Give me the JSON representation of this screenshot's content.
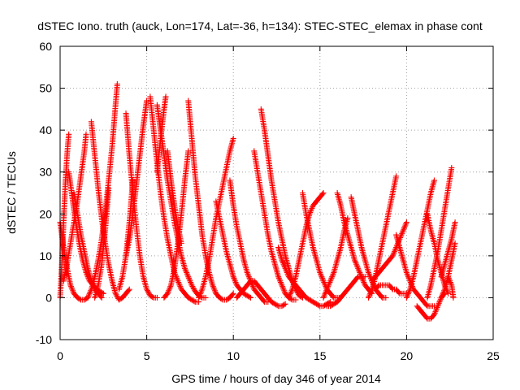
{
  "chart_data": {
    "type": "scatter",
    "title": "dSTEC Iono. truth (auck, Lon=174, Lat=-36, h=134): STEC-STEC_elemax in phase cont",
    "xlabel": "GPS time / hours of day 346 of year 2014",
    "ylabel": "dSTEC  / TECUs",
    "xlim": [
      0,
      25
    ],
    "ylim": [
      -10,
      60
    ],
    "xticks": [
      0,
      5,
      10,
      15,
      20,
      25
    ],
    "yticks": [
      -10,
      0,
      10,
      20,
      30,
      40,
      50,
      60
    ],
    "grid": true,
    "marker": "+",
    "color": "#ff0000",
    "series": [
      {
        "x": [
          0.0,
          0.2,
          0.4,
          0.6,
          0.8,
          1.0,
          1.2,
          1.4,
          1.6,
          1.8,
          2.0,
          2.2,
          2.4,
          2.6,
          2.8,
          3.0,
          3.2,
          3.3
        ],
        "y": [
          18,
          12,
          7,
          3,
          1,
          0,
          -0.5,
          -0.5,
          0,
          2,
          5,
          9,
          14,
          20,
          28,
          36,
          46,
          51
        ]
      },
      {
        "x": [
          0.0,
          0.1,
          0.2,
          0.3,
          0.4,
          0.5
        ],
        "y": [
          0,
          8,
          18,
          27,
          34,
          39
        ]
      },
      {
        "x": [
          0.5,
          0.7,
          0.9,
          1.1,
          1.3,
          1.5,
          1.7,
          1.9,
          2.1,
          2.3,
          2.5
        ],
        "y": [
          30,
          24,
          18,
          13,
          9,
          6,
          4,
          3,
          2,
          1.5,
          1
        ]
      },
      {
        "x": [
          0.2,
          0.4,
          0.6,
          0.8,
          1.0,
          1.2,
          1.4,
          1.5
        ],
        "y": [
          4,
          8,
          13,
          18,
          23,
          29,
          35,
          39
        ]
      },
      {
        "x": [
          0.8,
          1.0,
          1.2,
          1.4,
          1.6,
          1.8,
          2.0,
          2.2,
          2.4
        ],
        "y": [
          25,
          20,
          15,
          11,
          7,
          4,
          2,
          1,
          0
        ]
      },
      {
        "x": [
          1.8,
          2.0,
          2.2,
          2.4,
          2.6,
          2.8,
          3.0,
          3.2,
          3.4,
          3.6,
          3.8,
          4.0
        ],
        "y": [
          42,
          34,
          26,
          19,
          13,
          8,
          4,
          1,
          -0.5,
          0,
          1,
          2
        ]
      },
      {
        "x": [
          2.0,
          2.2,
          2.4,
          2.6,
          2.8
        ],
        "y": [
          0,
          3,
          8,
          16,
          26
        ]
      },
      {
        "x": [
          3.4,
          3.6,
          3.8,
          4.0,
          4.2
        ],
        "y": [
          2,
          5,
          10,
          18,
          28
        ]
      },
      {
        "x": [
          3.8,
          4.0,
          4.2,
          4.4,
          4.6,
          4.8,
          5.0,
          5.2,
          5.4,
          5.6
        ],
        "y": [
          44,
          34,
          25,
          17,
          10,
          5,
          2,
          0.5,
          0,
          0
        ]
      },
      {
        "x": [
          3.8,
          4.0,
          4.2,
          4.4,
          4.6,
          4.8,
          5.0
        ],
        "y": [
          10,
          14,
          20,
          27,
          34,
          41,
          47
        ]
      },
      {
        "x": [
          5.2,
          5.4,
          5.6,
          5.8,
          6.0,
          6.2,
          6.4,
          6.6,
          6.8,
          7.0,
          7.2,
          7.4,
          7.6,
          7.8,
          8.0
        ],
        "y": [
          48,
          40,
          32,
          25,
          19,
          14,
          10,
          6,
          4,
          2,
          1,
          0,
          -0.5,
          -1,
          -1
        ]
      },
      {
        "x": [
          5.6,
          5.8,
          6.0,
          6.2,
          6.4,
          6.6,
          6.8,
          7.0,
          7.2,
          7.4,
          7.6,
          7.8,
          8.0,
          8.2,
          8.4
        ],
        "y": [
          46,
          40,
          34,
          28,
          23,
          18,
          14,
          10,
          7,
          5,
          3,
          1.5,
          0.5,
          0,
          0
        ]
      },
      {
        "x": [
          5.6,
          5.8,
          6.0,
          6.1
        ],
        "y": [
          30,
          38,
          45,
          48
        ]
      },
      {
        "x": [
          6.0,
          6.2,
          6.4,
          6.6,
          6.8,
          7.0,
          7.2,
          7.4
        ],
        "y": [
          0,
          1,
          3,
          7,
          13,
          20,
          28,
          35
        ]
      },
      {
        "x": [
          6.2,
          6.4,
          6.6,
          6.8,
          7.0
        ],
        "y": [
          35,
          28,
          22,
          17,
          13
        ]
      },
      {
        "x": [
          7.4,
          7.6,
          7.8,
          8.0,
          8.2,
          8.4,
          8.6,
          8.8,
          9.0,
          9.2,
          9.4,
          9.6,
          9.8,
          10.0
        ],
        "y": [
          47,
          38,
          29,
          22,
          15,
          10,
          6,
          3,
          1,
          0,
          -0.5,
          -0.5,
          0,
          1
        ]
      },
      {
        "x": [
          8.0,
          8.2,
          8.4,
          8.6,
          8.8,
          9.0,
          9.2,
          9.4,
          9.6,
          9.8,
          10.0
        ],
        "y": [
          0,
          2,
          5,
          9,
          14,
          19,
          23,
          27,
          31,
          35,
          38
        ]
      },
      {
        "x": [
          9.0,
          9.2,
          9.4,
          9.6,
          9.8,
          10.0,
          10.2,
          10.4,
          10.6,
          10.8,
          11.0
        ],
        "y": [
          23,
          19,
          15,
          11,
          8,
          5,
          3,
          2,
          1,
          0.5,
          0
        ]
      },
      {
        "x": [
          9.8,
          10.0,
          10.2,
          10.4,
          10.6,
          10.8,
          11.0,
          11.2,
          11.4,
          11.6,
          11.8,
          12.0
        ],
        "y": [
          28,
          22,
          17,
          13,
          9,
          6,
          4,
          2,
          1,
          0,
          -1,
          -1
        ]
      },
      {
        "x": [
          10.2,
          10.4,
          10.6,
          10.8,
          11.0,
          11.2,
          11.4,
          11.6,
          11.8,
          12.0,
          12.2,
          12.4,
          12.6,
          12.8,
          13.0
        ],
        "y": [
          0,
          1,
          2,
          3,
          4,
          4,
          3,
          2,
          1,
          0,
          -1,
          -1.5,
          -2,
          -2,
          -1.5
        ]
      },
      {
        "x": [
          11.2,
          11.4,
          11.6,
          11.8,
          12.0,
          12.2,
          12.4,
          12.6,
          12.8,
          13.0,
          13.2,
          13.4,
          13.6
        ],
        "y": [
          35,
          30,
          25,
          20,
          15,
          11,
          8,
          5,
          3,
          1,
          0,
          -0.5,
          -0.5
        ]
      },
      {
        "x": [
          11.6,
          11.8,
          12.0,
          12.2,
          12.4,
          12.6,
          12.8,
          13.0,
          13.2,
          13.4,
          13.6,
          13.8,
          14.0
        ],
        "y": [
          45,
          40,
          34,
          28,
          23,
          18,
          14,
          10,
          7,
          4,
          2,
          0.5,
          0
        ]
      },
      {
        "x": [
          12.6,
          12.8,
          13.0,
          13.2,
          13.4,
          13.6,
          13.8,
          14.0,
          14.2,
          14.4,
          14.6,
          14.8,
          15.0,
          15.2,
          15.4,
          15.6
        ],
        "y": [
          12,
          9,
          7,
          5,
          4,
          3,
          2,
          1,
          0,
          -0.5,
          -1,
          -1.5,
          -2,
          -2,
          -1.5,
          -1
        ]
      },
      {
        "x": [
          13.2,
          13.4,
          13.6,
          13.8,
          14.0,
          14.2,
          14.4,
          14.6,
          14.8,
          15.0,
          15.2
        ],
        "y": [
          0,
          2,
          5,
          9,
          13,
          17,
          20,
          22,
          23,
          24,
          25
        ]
      },
      {
        "x": [
          14.0,
          14.2,
          14.4,
          14.6,
          14.8,
          15.0,
          15.2,
          15.4,
          15.6,
          15.8,
          16.0,
          16.2
        ],
        "y": [
          25,
          20,
          16,
          12,
          9,
          6,
          4,
          2,
          1,
          0,
          0,
          0
        ]
      },
      {
        "x": [
          15.2,
          15.4,
          15.6,
          15.8,
          16.0,
          16.2,
          16.4,
          16.6
        ],
        "y": [
          0,
          2,
          4,
          6,
          9,
          12,
          16,
          19
        ]
      },
      {
        "x": [
          15.4,
          15.6,
          15.8,
          16.0,
          16.2,
          16.4,
          16.6,
          16.8,
          17.0,
          17.2,
          17.4,
          17.6
        ],
        "y": [
          -2,
          -2,
          -1.5,
          -1,
          0,
          1,
          2,
          3,
          4,
          5,
          5,
          5
        ]
      },
      {
        "x": [
          16.0,
          16.2,
          16.4,
          16.6,
          16.8,
          17.0,
          17.2,
          17.4,
          17.6,
          17.8,
          18.0
        ],
        "y": [
          25,
          22,
          18,
          15,
          12,
          9,
          7,
          5,
          3,
          2,
          1
        ]
      },
      {
        "x": [
          16.8,
          17.0,
          17.2,
          17.4,
          17.6,
          17.8,
          18.0,
          18.2,
          18.4,
          18.6,
          18.8
        ],
        "y": [
          24,
          20,
          16,
          12,
          9,
          6,
          4,
          2,
          1,
          0,
          0
        ]
      },
      {
        "x": [
          17.8,
          18.0,
          18.2,
          18.4,
          18.6,
          18.8,
          19.0,
          19.2,
          19.4
        ],
        "y": [
          0,
          2,
          5,
          9,
          13,
          17,
          21,
          25,
          29
        ]
      },
      {
        "x": [
          18.0,
          18.2,
          18.4,
          18.6,
          18.8,
          19.0,
          19.2,
          19.4,
          19.6,
          19.8,
          20.0
        ],
        "y": [
          4,
          5,
          6,
          7,
          8,
          9,
          10,
          12,
          14,
          16,
          18
        ]
      },
      {
        "x": [
          18.2,
          18.4,
          18.6,
          18.8,
          19.0,
          19.2,
          19.4,
          19.6,
          19.8,
          20.0
        ],
        "y": [
          2,
          3,
          3,
          3,
          3,
          2,
          2,
          1,
          1,
          1
        ]
      },
      {
        "x": [
          19.4,
          19.6,
          19.8,
          20.0,
          20.2,
          20.4,
          20.6,
          20.8,
          21.0,
          21.2,
          21.4,
          21.6
        ],
        "y": [
          15,
          12,
          9,
          6,
          4,
          2,
          1,
          0,
          -1,
          -2,
          -2,
          -2
        ]
      },
      {
        "x": [
          20.0,
          20.2,
          20.4,
          20.6,
          20.8,
          21.0,
          21.2,
          21.4,
          21.6
        ],
        "y": [
          0,
          2,
          5,
          9,
          13,
          17,
          21,
          25,
          28
        ]
      },
      {
        "x": [
          20.6,
          20.8,
          21.0,
          21.2,
          21.4,
          21.6,
          21.8,
          22.0,
          22.2
        ],
        "y": [
          -2,
          -3,
          -4,
          -5,
          -5,
          -4,
          -2,
          0,
          1
        ]
      },
      {
        "x": [
          21.2,
          21.4,
          21.6,
          21.8,
          22.0,
          22.2,
          22.4
        ],
        "y": [
          20,
          16,
          13,
          9,
          6,
          3,
          1
        ]
      },
      {
        "x": [
          21.2,
          21.4,
          21.6,
          21.8,
          22.0,
          22.2,
          22.4,
          22.6
        ],
        "y": [
          0,
          3,
          7,
          11,
          16,
          21,
          26,
          31
        ]
      },
      {
        "x": [
          22.0,
          22.2,
          22.4,
          22.6,
          22.8
        ],
        "y": [
          0,
          2,
          5,
          9,
          13
        ]
      },
      {
        "x": [
          22.0,
          22.2,
          22.4,
          22.6,
          22.8
        ],
        "y": [
          5,
          8,
          11,
          14,
          18
        ]
      },
      {
        "x": [
          22.4,
          22.6,
          22.7
        ],
        "y": [
          5,
          3,
          0
        ]
      }
    ]
  }
}
